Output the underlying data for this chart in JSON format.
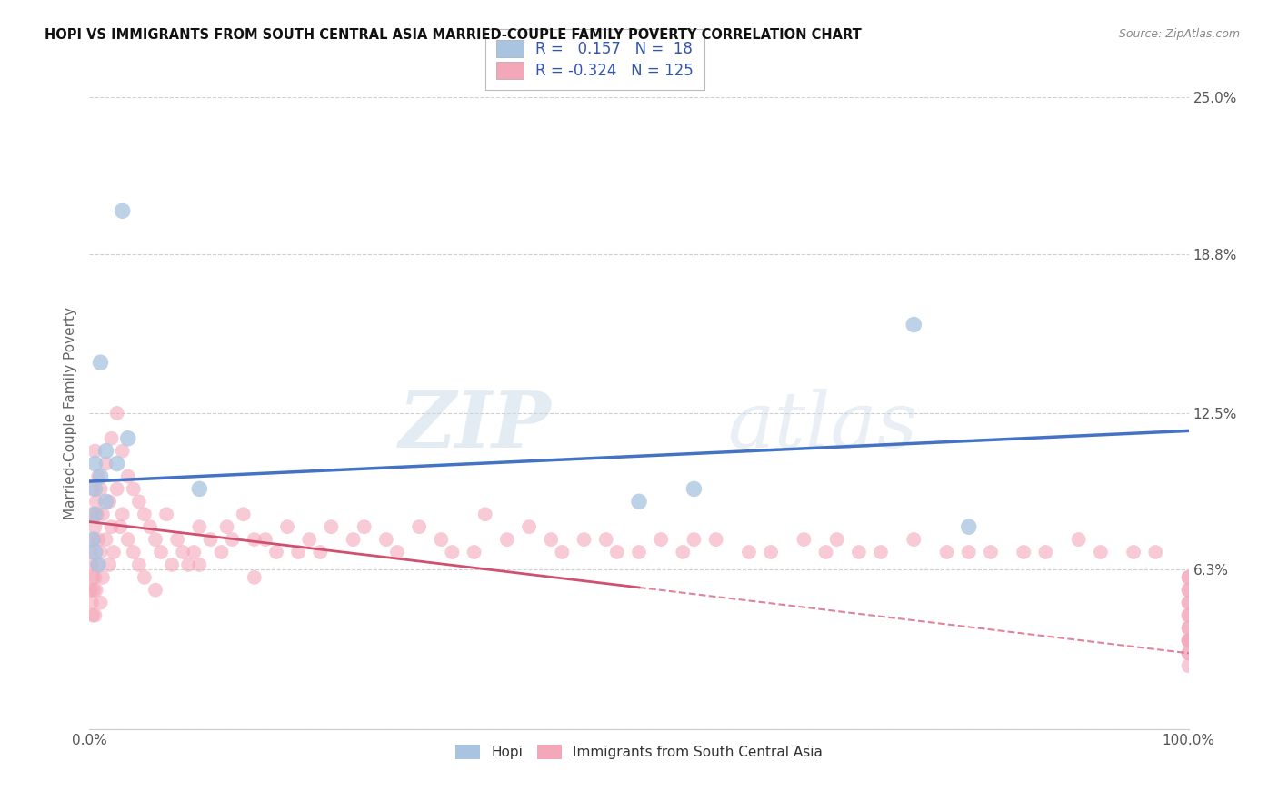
{
  "title": "HOPI VS IMMIGRANTS FROM SOUTH CENTRAL ASIA MARRIED-COUPLE FAMILY POVERTY CORRELATION CHART",
  "source": "Source: ZipAtlas.com",
  "ylabel": "Married-Couple Family Poverty",
  "xlabel": "",
  "xlim": [
    0,
    100
  ],
  "ylim": [
    0,
    25
  ],
  "ytick_vals": [
    0,
    6.3,
    12.5,
    18.8,
    25.0
  ],
  "ytick_labels": [
    "",
    "6.3%",
    "12.5%",
    "18.8%",
    "25.0%"
  ],
  "xtick_vals": [
    0,
    100
  ],
  "xtick_labels": [
    "0.0%",
    "100.0%"
  ],
  "hopi_R": 0.157,
  "hopi_N": 18,
  "immigrant_R": -0.324,
  "immigrant_N": 125,
  "hopi_color": "#a8c4e0",
  "hopi_line_color": "#4472c4",
  "immigrant_color": "#f4a7b9",
  "immigrant_line_color": "#d05070",
  "legend_label_hopi": "Hopi",
  "legend_label_immigrant": "Immigrants from South Central Asia",
  "watermark_zip": "ZIP",
  "watermark_atlas": "atlas",
  "background_color": "#ffffff",
  "grid_color": "#d0d0d0",
  "hopi_x": [
    3.0,
    1.0,
    3.5,
    1.5,
    2.5,
    0.5,
    1.0,
    0.5,
    1.5,
    0.5,
    0.3,
    0.5,
    0.8,
    75.0,
    55.0,
    80.0,
    50.0,
    10.0
  ],
  "hopi_y": [
    20.5,
    14.5,
    11.5,
    11.0,
    10.5,
    10.5,
    10.0,
    9.5,
    9.0,
    8.5,
    7.5,
    7.0,
    6.5,
    16.0,
    9.5,
    8.0,
    9.0,
    9.5
  ],
  "immigrant_x": [
    0.1,
    0.1,
    0.2,
    0.2,
    0.2,
    0.3,
    0.3,
    0.3,
    0.4,
    0.4,
    0.5,
    0.5,
    0.5,
    0.5,
    0.6,
    0.6,
    0.7,
    0.7,
    0.8,
    0.8,
    1.0,
    1.0,
    1.0,
    1.2,
    1.2,
    1.5,
    1.5,
    1.8,
    1.8,
    2.0,
    2.0,
    2.2,
    2.5,
    2.5,
    2.8,
    3.0,
    3.0,
    3.5,
    3.5,
    4.0,
    4.0,
    4.5,
    4.5,
    5.0,
    5.0,
    5.5,
    6.0,
    6.0,
    6.5,
    7.0,
    7.5,
    8.0,
    8.5,
    9.0,
    9.5,
    10.0,
    10.0,
    11.0,
    12.0,
    12.5,
    13.0,
    14.0,
    15.0,
    15.0,
    16.0,
    17.0,
    18.0,
    19.0,
    20.0,
    21.0,
    22.0,
    24.0,
    25.0,
    27.0,
    28.0,
    30.0,
    32.0,
    33.0,
    35.0,
    36.0,
    38.0,
    40.0,
    42.0,
    43.0,
    45.0,
    47.0,
    48.0,
    50.0,
    52.0,
    54.0,
    55.0,
    57.0,
    60.0,
    62.0,
    65.0,
    67.0,
    68.0,
    70.0,
    72.0,
    75.0,
    78.0,
    80.0,
    82.0,
    85.0,
    87.0,
    90.0,
    92.0,
    95.0,
    97.0,
    100.0,
    100.0,
    100.0,
    100.0,
    100.0,
    100.0,
    100.0,
    100.0,
    100.0,
    100.0,
    100.0,
    100.0,
    100.0,
    100.0,
    100.0,
    100.0
  ],
  "immigrant_y": [
    5.5,
    7.0,
    8.5,
    5.0,
    6.5,
    9.5,
    6.0,
    4.5,
    7.5,
    5.5,
    11.0,
    8.0,
    6.0,
    4.5,
    9.0,
    5.5,
    8.5,
    6.5,
    10.0,
    7.5,
    9.5,
    7.0,
    5.0,
    8.5,
    6.0,
    10.5,
    7.5,
    9.0,
    6.5,
    11.5,
    8.0,
    7.0,
    12.5,
    9.5,
    8.0,
    11.0,
    8.5,
    10.0,
    7.5,
    9.5,
    7.0,
    9.0,
    6.5,
    8.5,
    6.0,
    8.0,
    7.5,
    5.5,
    7.0,
    8.5,
    6.5,
    7.5,
    7.0,
    6.5,
    7.0,
    8.0,
    6.5,
    7.5,
    7.0,
    8.0,
    7.5,
    8.5,
    7.5,
    6.0,
    7.5,
    7.0,
    8.0,
    7.0,
    7.5,
    7.0,
    8.0,
    7.5,
    8.0,
    7.5,
    7.0,
    8.0,
    7.5,
    7.0,
    7.0,
    8.5,
    7.5,
    8.0,
    7.5,
    7.0,
    7.5,
    7.5,
    7.0,
    7.0,
    7.5,
    7.0,
    7.5,
    7.5,
    7.0,
    7.0,
    7.5,
    7.0,
    7.5,
    7.0,
    7.0,
    7.5,
    7.0,
    7.0,
    7.0,
    7.0,
    7.0,
    7.5,
    7.0,
    7.0,
    7.0,
    5.0,
    4.0,
    3.5,
    6.0,
    5.5,
    4.5,
    3.0,
    6.0,
    5.0,
    4.0,
    3.5,
    5.5,
    4.5,
    3.5,
    3.0,
    2.5
  ]
}
